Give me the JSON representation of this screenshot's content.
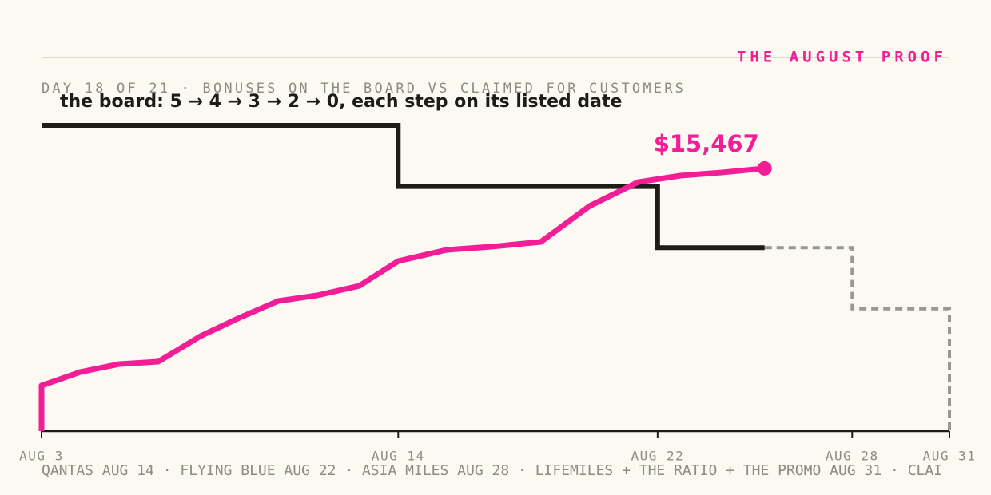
{
  "chart_data": {
    "type": "line",
    "title": "THE AUGUST PROOF",
    "subtitle": "DAY 18 OF 21 · BONUSES ON THE BOARD VS CLAIMED FOR CUSTOMERS",
    "annotation": "the board: 5 → 4 → 3 → 2 → 0, each step on its listed date",
    "footer": "QANTAS AUG 14 · FLYING BLUE AUG 22 · ASIA MILES AUG 28 · LIFEMILES + THE RATIO + THE PROMO AUG 31 · CLAI",
    "xlim": [
      3,
      31
    ],
    "xticks": [
      {
        "value": 3,
        "label": "AUG 3"
      },
      {
        "value": 14,
        "label": "AUG 14"
      },
      {
        "value": 22,
        "label": "AUG 22"
      },
      {
        "value": 28,
        "label": "AUG 28"
      },
      {
        "value": 31,
        "label": "AUG 31"
      }
    ],
    "ylim": [
      0,
      5
    ],
    "y2lim": [
      0,
      18000
    ],
    "series": [
      {
        "color": "#1f1c17",
        "step": true,
        "dashed": false,
        "x": [
          3,
          14,
          22,
          25.3
        ],
        "values": [
          5,
          4,
          3,
          3
        ]
      },
      {
        "color": "#9a9791",
        "step": true,
        "dashed": true,
        "x": [
          25.3,
          28,
          31
        ],
        "values": [
          3,
          2,
          0
        ]
      },
      {
        "color": "#f21e96",
        "axis": "y2",
        "step": false,
        "dashed": false,
        "x": [
          3,
          3,
          4.2,
          5.4,
          6.6,
          7.9,
          9.1,
          10.3,
          11.5,
          12.8,
          14,
          15.5,
          16.9,
          18.4,
          19.9,
          21.4,
          22.7,
          24,
          25.3
        ],
        "values": [
          0,
          2680,
          3480,
          3950,
          4090,
          5590,
          6670,
          7660,
          7990,
          8550,
          10010,
          10670,
          10860,
          11140,
          13250,
          14660,
          15040,
          15230,
          15467
        ],
        "value_labels": [
          null,
          null,
          null,
          null,
          null,
          null,
          null,
          null,
          null,
          null,
          null,
          null,
          null,
          null,
          null,
          null,
          null,
          null,
          "$15,467"
        ]
      }
    ]
  }
}
